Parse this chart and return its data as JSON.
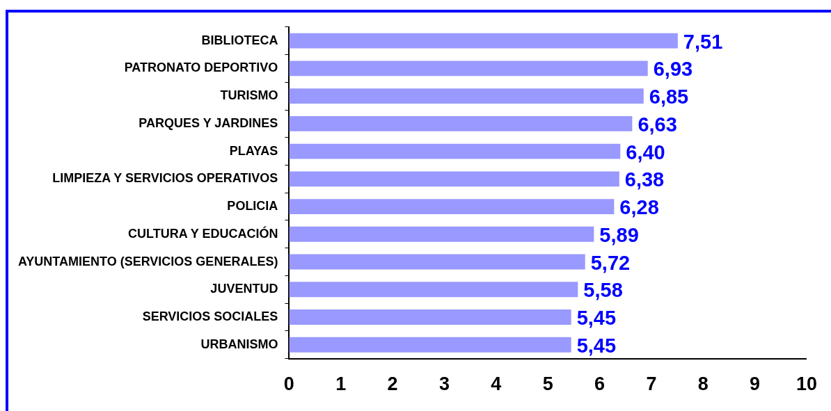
{
  "chart_data": {
    "type": "bar",
    "orientation": "horizontal",
    "categories": [
      "BIBLIOTECA",
      "PATRONATO DEPORTIVO",
      "TURISMO",
      "PARQUES Y JARDINES",
      "PLAYAS",
      "LIMPIEZA Y SERVICIOS OPERATIVOS",
      "POLICIA",
      "CULTURA Y EDUCACIÓN",
      "AYUNTAMIENTO (SERVICIOS GENERALES)",
      "JUVENTUD",
      "SERVICIOS SOCIALES",
      "URBANISMO"
    ],
    "values": [
      7.51,
      6.93,
      6.85,
      6.63,
      6.4,
      6.38,
      6.28,
      5.89,
      5.72,
      5.58,
      5.45,
      5.45
    ],
    "value_labels": [
      "7,51",
      "6,93",
      "6,85",
      "6,63",
      "6,40",
      "6,38",
      "6,28",
      "5,89",
      "5,72",
      "5,58",
      "5,45",
      "5,45"
    ],
    "color": "#9999ff",
    "xlim": [
      0,
      10
    ],
    "xticks": [
      0,
      1,
      2,
      3,
      4,
      5,
      6,
      7,
      8,
      9,
      10
    ],
    "grid": false,
    "legend": false
  }
}
